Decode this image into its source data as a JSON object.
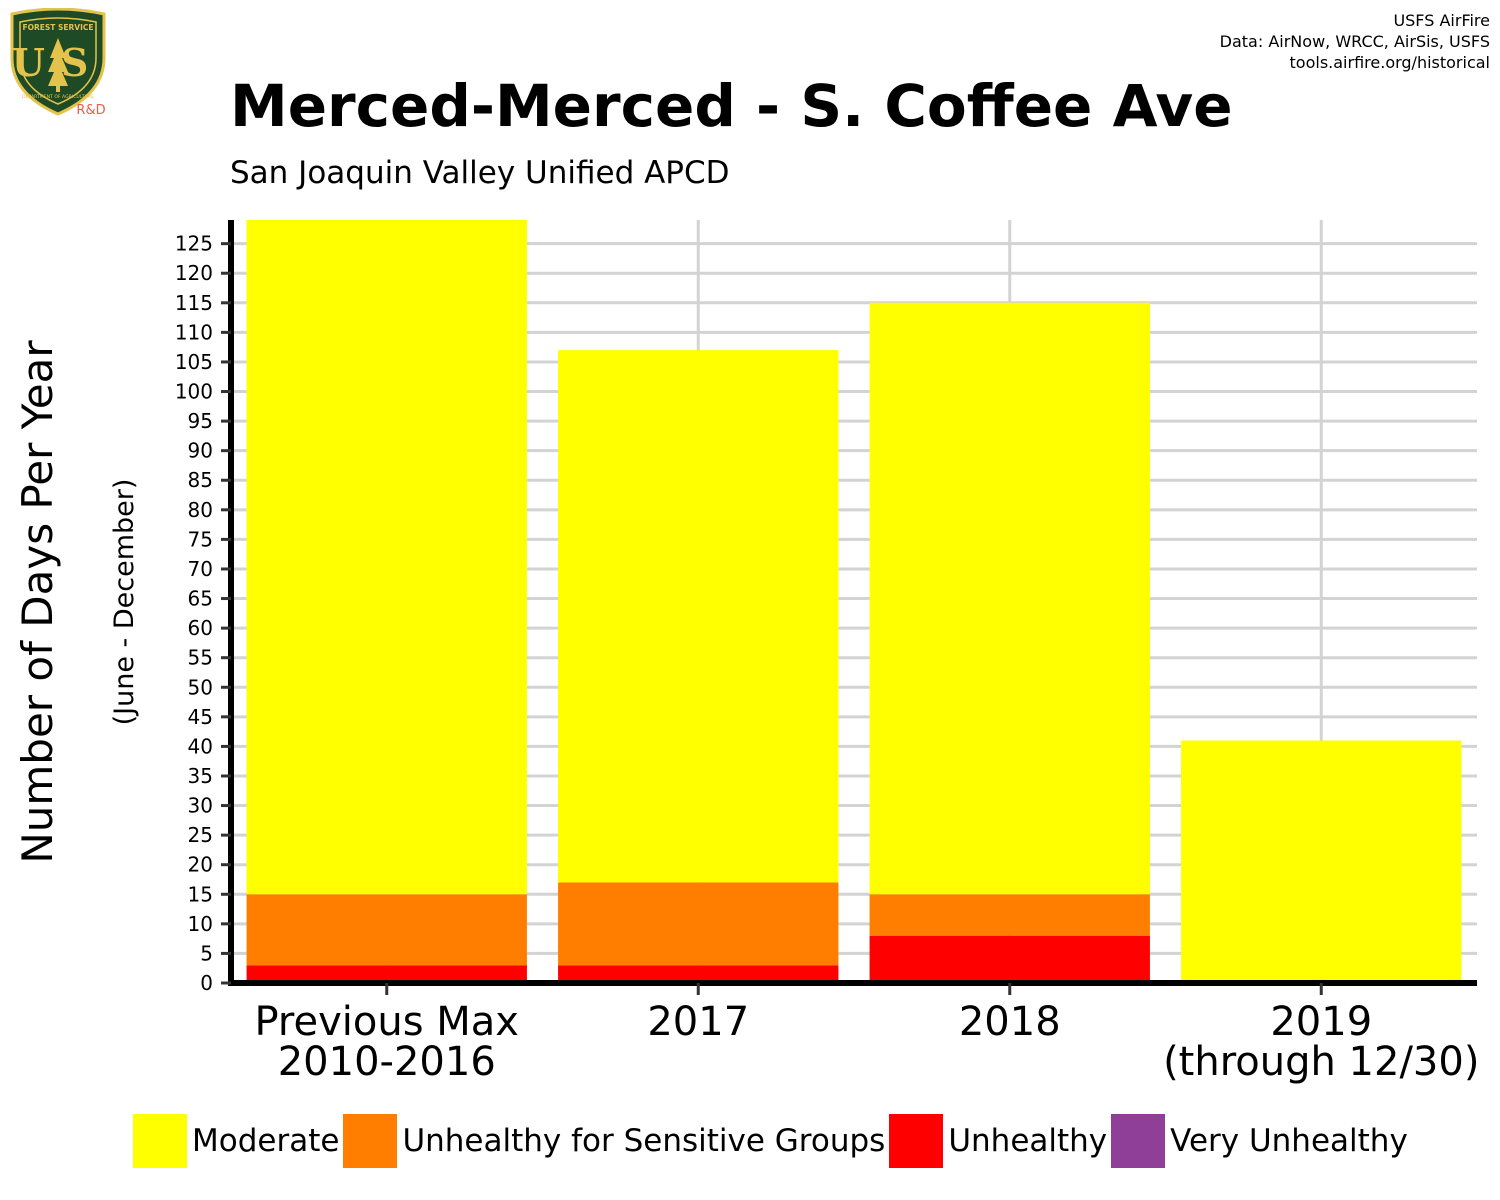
{
  "logo": {
    "icon": "usfs-shield-icon",
    "top_text": "FOREST SERVICE",
    "letters": "US",
    "bottom_text": "DEPARTMENT OF AGRICULTURE",
    "tag": "R&D",
    "colors": {
      "shield": "#1e4b26",
      "gold": "#e3c34b",
      "tag": "#e8604c"
    }
  },
  "credits": {
    "line1": "USFS AirFire",
    "line2": "Data: AirNow, WRCC, AirSis, USFS",
    "line3": "tools.airfire.org/historical"
  },
  "chart_data": {
    "type": "bar",
    "stacked": true,
    "title": "Merced-Merced - S. Coffee Ave",
    "subtitle": "San Joaquin Valley Unified APCD",
    "ylabel": "Number of Days Per Year",
    "ylabel_sub": "(June - December)",
    "xlabel": "",
    "categories": [
      [
        "Previous Max",
        "2010-2016"
      ],
      [
        "2017"
      ],
      [
        "2018"
      ],
      [
        "2019",
        "(through 12/30)"
      ]
    ],
    "series": [
      {
        "name": "Unhealthy",
        "color": "#ff0000",
        "values": [
          3,
          3,
          8,
          0
        ]
      },
      {
        "name": "Unhealthy for Sensitive Groups",
        "color": "#ff7e00",
        "values": [
          12,
          14,
          7,
          0
        ]
      },
      {
        "name": "Moderate",
        "color": "#ffff00",
        "values": [
          114,
          90,
          100,
          41
        ]
      },
      {
        "name": "Very Unhealthy",
        "color": "#8f3f97",
        "values": [
          0,
          0,
          0,
          0
        ]
      }
    ],
    "legend_order": [
      "Moderate",
      "Unhealthy for Sensitive Groups",
      "Unhealthy",
      "Very Unhealthy"
    ],
    "ylim": [
      0,
      129
    ],
    "yticks": [
      0,
      5,
      10,
      15,
      20,
      25,
      30,
      35,
      40,
      45,
      50,
      55,
      60,
      65,
      70,
      75,
      80,
      85,
      90,
      95,
      100,
      105,
      110,
      115,
      120,
      125
    ],
    "grid": true,
    "legend_position": "bottom"
  }
}
